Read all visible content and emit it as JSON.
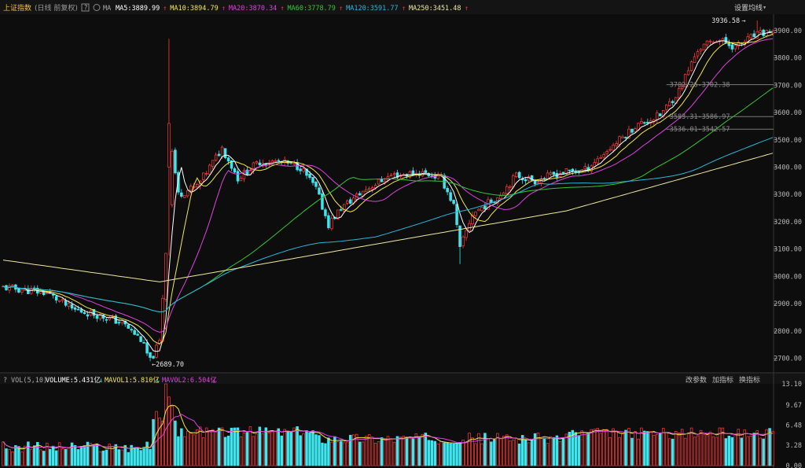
{
  "header": {
    "title": "上证指数",
    "sub": "(日线 前复权)",
    "ma_label": "MA",
    "ma": [
      {
        "label": "MA5:3889.99",
        "color": "#ffffff"
      },
      {
        "label": "MA10:3894.79",
        "color": "#f2e84a"
      },
      {
        "label": "MA20:3870.34",
        "color": "#e040e0"
      },
      {
        "label": "MA60:3778.79",
        "color": "#32c832"
      },
      {
        "label": "MA120:3591.77",
        "color": "#2bb7d9"
      },
      {
        "label": "MA250:3451.48",
        "color": "#eee8a0"
      }
    ],
    "settings": "设置均线"
  },
  "price_axis": [
    "3900.00",
    "3800.00",
    "3700.00",
    "3600.00",
    "3500.00",
    "3400.00",
    "3300.00",
    "3200.00",
    "3100.00",
    "3000.00",
    "2900.00",
    "2800.00",
    "2700.00"
  ],
  "annotations": {
    "high": "3936.58",
    "low": "2689.70",
    "gap1": "3702.26-3702.38",
    "gap2": "3583.31-3586.97",
    "gap3": "3536.01-3542.57"
  },
  "volume": {
    "header": {
      "help": "?",
      "name": "VOL(5,10)",
      "volume": "VOLUME:5.431亿",
      "mavol1": "MAVOL1:5.810亿",
      "mavol2": "MAVOL2:6.504亿"
    },
    "buttons": [
      "改参数",
      "加指标",
      "换指标"
    ],
    "axis": [
      "13.10",
      "9.67",
      "6.48",
      "3.28",
      "0.00"
    ]
  },
  "colors": {
    "up": "#ff3b3b",
    "down": "#3ee6f0",
    "bg": "#0d0d0d",
    "grid": "#2a2a2a"
  },
  "chart_data": {
    "type": "candlestick",
    "title": "上证指数",
    "ylim": [
      2650,
      3960
    ],
    "high_label": 3936.58,
    "low_label": 2689.7,
    "trend_anchors_close": [
      [
        0,
        2960
      ],
      [
        14,
        2940
      ],
      [
        22,
        2880
      ],
      [
        30,
        2860
      ],
      [
        38,
        2830
      ],
      [
        44,
        2770
      ],
      [
        47,
        2690
      ],
      [
        50,
        2760
      ],
      [
        52,
        3090
      ],
      [
        54,
        3460
      ],
      [
        56,
        3300
      ],
      [
        62,
        3330
      ],
      [
        70,
        3470
      ],
      [
        75,
        3360
      ],
      [
        82,
        3420
      ],
      [
        88,
        3420
      ],
      [
        95,
        3400
      ],
      [
        100,
        3320
      ],
      [
        104,
        3190
      ],
      [
        108,
        3250
      ],
      [
        116,
        3320
      ],
      [
        124,
        3370
      ],
      [
        134,
        3380
      ],
      [
        140,
        3360
      ],
      [
        144,
        3260
      ],
      [
        146,
        3100
      ],
      [
        150,
        3230
      ],
      [
        158,
        3290
      ],
      [
        164,
        3370
      ],
      [
        170,
        3350
      ],
      [
        178,
        3380
      ],
      [
        186,
        3390
      ],
      [
        194,
        3470
      ],
      [
        202,
        3550
      ],
      [
        210,
        3590
      ],
      [
        216,
        3680
      ],
      [
        222,
        3830
      ],
      [
        228,
        3870
      ],
      [
        234,
        3840
      ],
      [
        240,
        3880
      ],
      [
        246,
        3900
      ]
    ]
  }
}
